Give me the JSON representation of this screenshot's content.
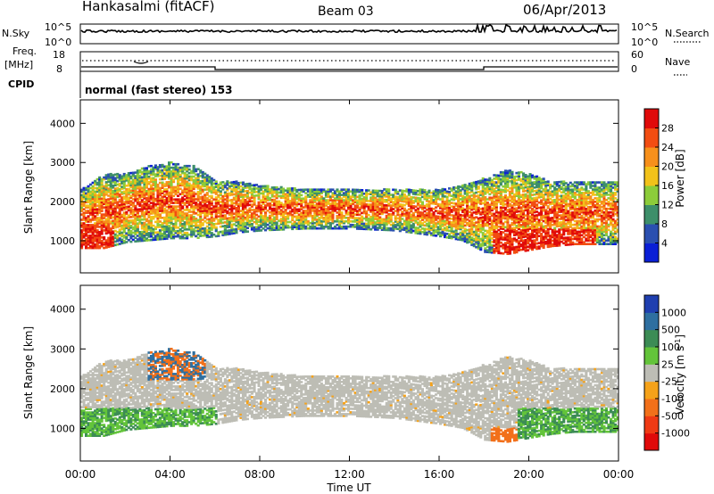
{
  "header": {
    "station": "Hankasalmi (fitACF)",
    "beam": "Beam 03",
    "date": "06/Apr/2013"
  },
  "top_panels": {
    "nsky_label": "N.Sky",
    "nsky_tick_top": "10^5",
    "nsky_tick_bottom": "10^0",
    "nsearch_label": "N.Search",
    "nsearch_tick_top": "10^5",
    "nsearch_tick_bottom": "10^0",
    "freq_label": "Freq.",
    "freq_unit": "[MHz]",
    "freq_tick_top": "18",
    "freq_tick_bottom": "8",
    "nave_label": "Nave",
    "nave_tick_top": "60",
    "nave_tick_bottom": "0",
    "cpid_label": "CPID",
    "cpid_text": "normal (fast stereo) 153"
  },
  "chart_data": [
    {
      "type": "heatmap",
      "name": "power",
      "ylabel": "Slant Range [km]",
      "y_ticks": [
        1000,
        2000,
        3000,
        4000
      ],
      "ylim": [
        180,
        4600
      ],
      "xlim": [
        0,
        24
      ],
      "colorbar": {
        "label": "Power [dB]",
        "ticks": [
          "4",
          "8",
          "12",
          "16",
          "20",
          "24",
          "28"
        ],
        "colors": [
          "#0a1fd6",
          "#2a4fb0",
          "#3d8f6a",
          "#8ccc3a",
          "#f2c21a",
          "#f7901b",
          "#f24d12",
          "#e00a0a"
        ]
      }
    },
    {
      "type": "heatmap",
      "name": "velocity",
      "ylabel": "Slant Range [km]",
      "y_ticks": [
        1000,
        2000,
        3000,
        4000
      ],
      "ylim": [
        180,
        4600
      ],
      "xlim": [
        0,
        24
      ],
      "xlabel": "Time UT",
      "x_ticks": [
        "00:00",
        "04:00",
        "08:00",
        "12:00",
        "16:00",
        "20:00",
        "00:00"
      ],
      "colorbar": {
        "label": "Velocity [m s",
        "label_sup": "-1",
        "label_end": "]",
        "ticks": [
          "1000",
          "500",
          "100",
          "25",
          "-25",
          "-100",
          "-500",
          "-1000"
        ],
        "colors": [
          "#1f3fb0",
          "#2e6fa0",
          "#3c8c55",
          "#63c43a",
          "#bdbdb5",
          "#f5a21a",
          "#f2701a",
          "#ef3a14",
          "#e00a0a"
        ]
      }
    }
  ]
}
